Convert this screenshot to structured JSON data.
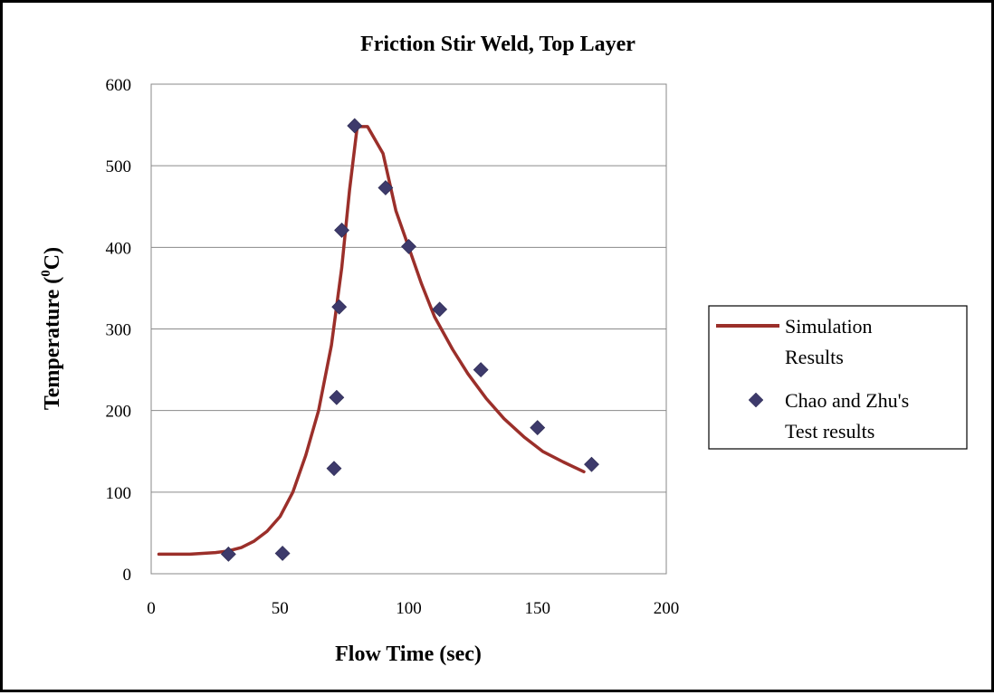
{
  "chart_data": {
    "type": "line",
    "title": "Friction Stir Weld, Top Layer",
    "xlabel": "Flow Time (sec)",
    "ylabel_main": "Temperature (",
    "ylabel_sup": "0",
    "ylabel_end": "C)",
    "xlim": [
      0,
      200
    ],
    "ylim": [
      0,
      600
    ],
    "x_ticks": [
      "0",
      "50",
      "100",
      "150",
      "200"
    ],
    "y_ticks": [
      "0",
      "100",
      "200",
      "300",
      "400",
      "500",
      "600"
    ],
    "grid": "horizontal",
    "legend_position": "right",
    "series": [
      {
        "name_lines": [
          "Simulation",
          "Results"
        ],
        "type": "line",
        "color": "#9b2f2a",
        "points": [
          [
            3,
            24
          ],
          [
            15,
            24
          ],
          [
            25,
            26
          ],
          [
            30,
            28
          ],
          [
            35,
            32
          ],
          [
            40,
            40
          ],
          [
            45,
            52
          ],
          [
            50,
            70
          ],
          [
            55,
            100
          ],
          [
            60,
            145
          ],
          [
            65,
            200
          ],
          [
            70,
            280
          ],
          [
            74,
            375
          ],
          [
            77,
            470
          ],
          [
            80,
            548
          ],
          [
            84,
            548
          ],
          [
            90,
            515
          ],
          [
            95,
            445
          ],
          [
            100,
            400
          ],
          [
            105,
            355
          ],
          [
            110,
            315
          ],
          [
            117,
            275
          ],
          [
            123,
            245
          ],
          [
            130,
            215
          ],
          [
            137,
            190
          ],
          [
            145,
            167
          ],
          [
            152,
            150
          ],
          [
            160,
            137
          ],
          [
            168,
            125
          ]
        ]
      },
      {
        "name_lines": [
          "Chao and Zhu's",
          "Test results"
        ],
        "type": "scatter",
        "color": "#3d3a6b",
        "points": [
          [
            30,
            24
          ],
          [
            51,
            25
          ],
          [
            71,
            129
          ],
          [
            72,
            216
          ],
          [
            73,
            327
          ],
          [
            74,
            421
          ],
          [
            79,
            549
          ],
          [
            91,
            473
          ],
          [
            100,
            401
          ],
          [
            112,
            324
          ],
          [
            128,
            250
          ],
          [
            150,
            179
          ],
          [
            171,
            134
          ]
        ]
      }
    ]
  }
}
